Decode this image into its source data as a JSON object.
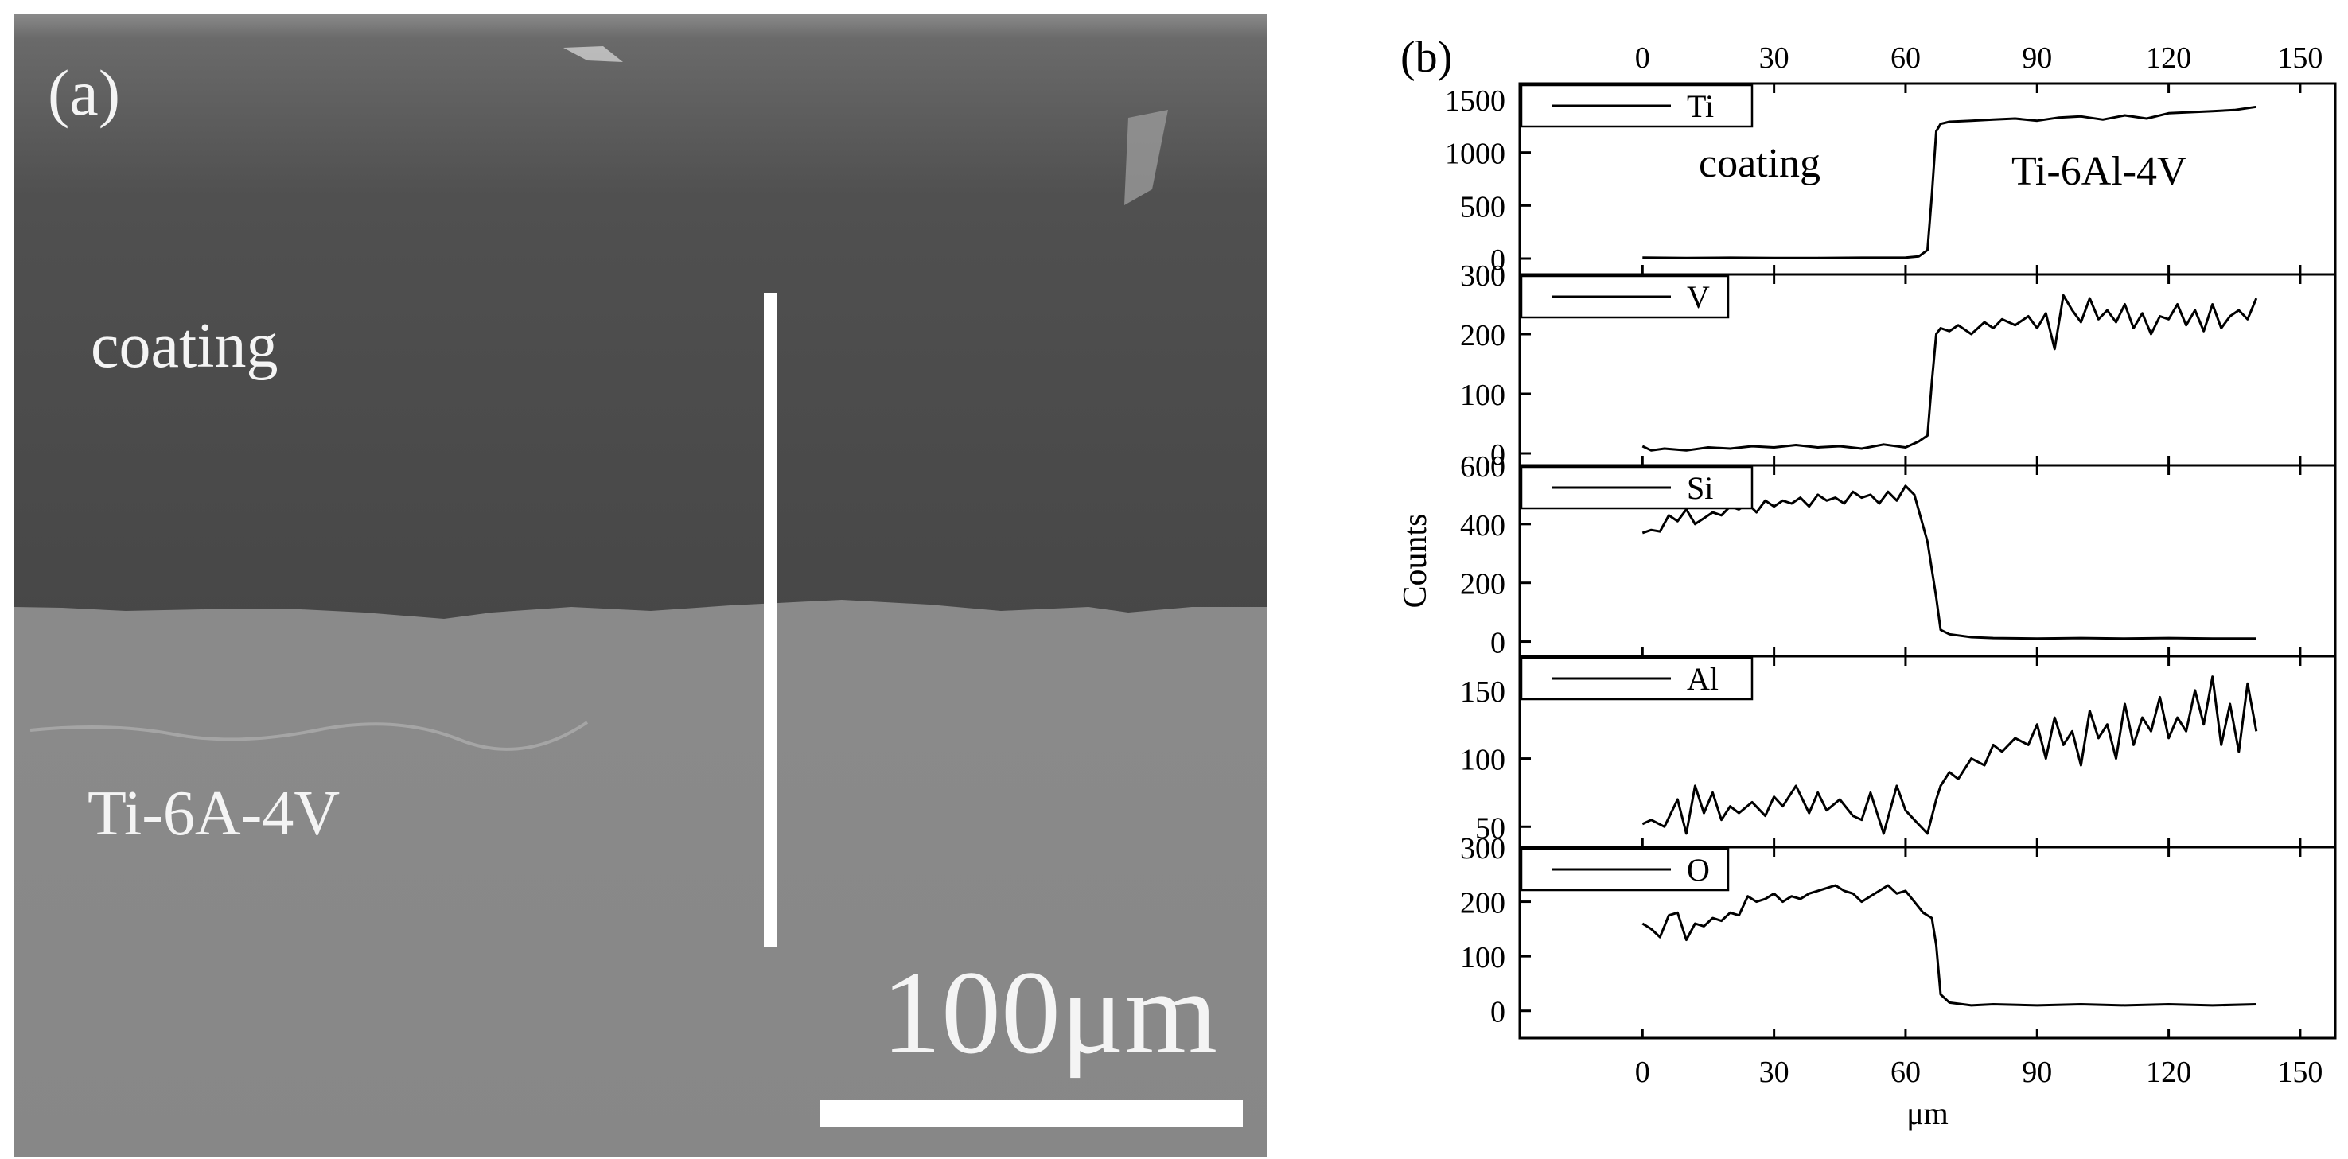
{
  "figure": {
    "panel_a": {
      "label": "(a)",
      "coating_label": "coating",
      "substrate_label": "Ti-6A-4V",
      "scale_bar_label": "100μm",
      "colors": {
        "coating": "#4d4d4d",
        "substrate": "#8a8a8a",
        "marks": "#ffffff"
      }
    },
    "panel_b": {
      "label": "(b)",
      "coating_annotation": "coating",
      "substrate_annotation": "Ti-6Al-4V"
    }
  },
  "chart_data": {
    "type": "line",
    "xlabel": "μm",
    "ylabel": "Counts",
    "xlim": [
      -28,
      158
    ],
    "xticks": [
      0,
      30,
      60,
      90,
      120,
      150
    ],
    "grid": false,
    "legend_placement": "top-left",
    "line_color": "#000000",
    "series": [
      {
        "name": "Ti",
        "ylim": [
          -150,
          1650
        ],
        "yticks": [
          0,
          500,
          1000,
          1500
        ],
        "x": [
          0,
          10,
          20,
          30,
          40,
          50,
          60,
          63,
          65,
          66,
          67,
          68,
          70,
          75,
          80,
          85,
          90,
          95,
          100,
          105,
          110,
          115,
          120,
          125,
          130,
          135,
          140
        ],
        "y": [
          10,
          5,
          8,
          5,
          6,
          8,
          10,
          20,
          80,
          600,
          1200,
          1270,
          1290,
          1300,
          1310,
          1320,
          1300,
          1330,
          1340,
          1310,
          1350,
          1320,
          1370,
          1380,
          1390,
          1400,
          1430
        ]
      },
      {
        "name": "V",
        "ylim": [
          -20,
          300
        ],
        "yticks": [
          0,
          100,
          200,
          300
        ],
        "x": [
          0,
          2,
          5,
          10,
          15,
          20,
          25,
          30,
          35,
          40,
          45,
          50,
          55,
          60,
          63,
          65,
          66,
          67,
          68,
          70,
          72,
          75,
          78,
          80,
          82,
          85,
          88,
          90,
          92,
          94,
          96,
          98,
          100,
          102,
          104,
          106,
          108,
          110,
          112,
          114,
          116,
          118,
          120,
          122,
          124,
          126,
          128,
          130,
          132,
          134,
          136,
          138,
          140
        ],
        "y": [
          12,
          5,
          8,
          5,
          10,
          8,
          12,
          10,
          14,
          10,
          12,
          8,
          15,
          10,
          20,
          30,
          120,
          200,
          210,
          205,
          215,
          200,
          220,
          210,
          225,
          215,
          230,
          210,
          235,
          175,
          265,
          240,
          220,
          260,
          225,
          240,
          220,
          250,
          210,
          235,
          200,
          230,
          225,
          250,
          215,
          240,
          205,
          250,
          210,
          230,
          240,
          225,
          260
        ]
      },
      {
        "name": "Si",
        "ylim": [
          -50,
          600
        ],
        "yticks": [
          0,
          200,
          400,
          600
        ],
        "x": [
          0,
          2,
          4,
          6,
          8,
          10,
          12,
          14,
          16,
          18,
          20,
          22,
          24,
          26,
          28,
          30,
          32,
          34,
          36,
          38,
          40,
          42,
          44,
          46,
          48,
          50,
          52,
          54,
          56,
          58,
          60,
          62,
          65,
          67,
          68,
          70,
          75,
          80,
          90,
          100,
          110,
          120,
          130,
          140
        ],
        "y": [
          370,
          380,
          375,
          430,
          410,
          450,
          400,
          420,
          440,
          430,
          460,
          450,
          470,
          440,
          480,
          460,
          480,
          470,
          490,
          460,
          500,
          480,
          490,
          470,
          510,
          490,
          500,
          470,
          510,
          480,
          530,
          500,
          340,
          150,
          40,
          25,
          15,
          12,
          10,
          12,
          10,
          12,
          10,
          10
        ]
      },
      {
        "name": "Al",
        "ylim": [
          35,
          175
        ],
        "yticks": [
          50,
          100,
          150
        ],
        "x": [
          0,
          2,
          5,
          8,
          10,
          12,
          14,
          16,
          18,
          20,
          22,
          25,
          28,
          30,
          32,
          35,
          38,
          40,
          42,
          45,
          48,
          50,
          52,
          55,
          58,
          60,
          62,
          65,
          67,
          68,
          70,
          72,
          75,
          78,
          80,
          82,
          85,
          88,
          90,
          92,
          94,
          96,
          98,
          100,
          102,
          104,
          106,
          108,
          110,
          112,
          114,
          116,
          118,
          120,
          122,
          124,
          126,
          128,
          130,
          132,
          134,
          136,
          138,
          140
        ],
        "y": [
          52,
          55,
          50,
          70,
          45,
          80,
          60,
          75,
          55,
          65,
          60,
          68,
          58,
          72,
          65,
          80,
          60,
          75,
          62,
          70,
          58,
          55,
          75,
          45,
          80,
          62,
          55,
          45,
          70,
          80,
          90,
          85,
          100,
          95,
          110,
          105,
          115,
          110,
          125,
          100,
          130,
          110,
          120,
          95,
          135,
          115,
          125,
          100,
          140,
          110,
          130,
          120,
          145,
          115,
          130,
          120,
          150,
          125,
          160,
          110,
          140,
          105,
          155,
          120
        ]
      },
      {
        "name": "O",
        "ylim": [
          -50,
          300
        ],
        "yticks": [
          0,
          100,
          200,
          300
        ],
        "x": [
          0,
          2,
          4,
          6,
          8,
          10,
          12,
          14,
          16,
          18,
          20,
          22,
          24,
          26,
          28,
          30,
          32,
          34,
          36,
          38,
          40,
          42,
          44,
          46,
          48,
          50,
          52,
          54,
          56,
          58,
          60,
          62,
          64,
          66,
          67,
          68,
          70,
          75,
          80,
          90,
          100,
          110,
          120,
          130,
          140
        ],
        "y": [
          160,
          150,
          135,
          175,
          180,
          130,
          160,
          155,
          170,
          165,
          180,
          175,
          210,
          200,
          205,
          215,
          200,
          210,
          205,
          215,
          220,
          225,
          230,
          220,
          215,
          200,
          210,
          220,
          230,
          215,
          220,
          200,
          180,
          170,
          120,
          30,
          15,
          10,
          12,
          10,
          12,
          10,
          12,
          10,
          12
        ]
      }
    ]
  }
}
